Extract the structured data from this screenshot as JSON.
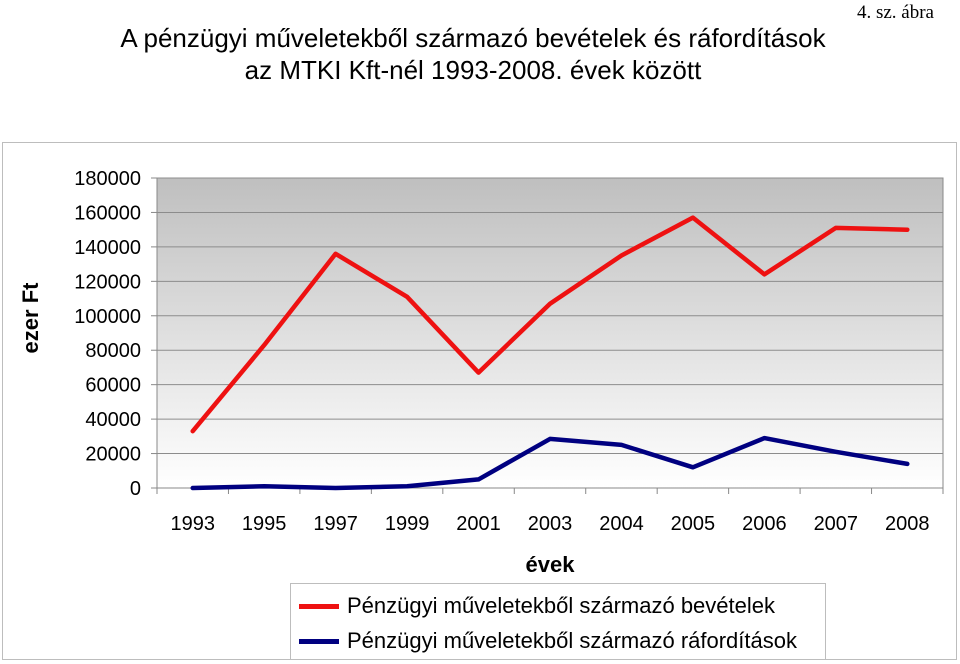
{
  "figure_note": "4. sz. ábra",
  "title_line1": "A pénzügyi műveletekből származó bevételek és ráfordítások",
  "title_line2": "az MTKI Kft-nél 1993-2008. évek között",
  "chart_data": {
    "type": "line",
    "title": "A pénzügyi műveletekből származó bevételek és ráfordítások az MTKI Kft-nél 1993-2008. évek között",
    "xlabel": "évek",
    "ylabel": "ezer Ft",
    "categories": [
      "1993",
      "1995",
      "1997",
      "1999",
      "2001",
      "2003",
      "2004",
      "2005",
      "2006",
      "2007",
      "2008"
    ],
    "yticks": [
      "0",
      "20000",
      "40000",
      "60000",
      "80000",
      "100000",
      "120000",
      "140000",
      "160000",
      "180000"
    ],
    "ylim": [
      0,
      180000
    ],
    "grid": true,
    "legend_position": "bottom",
    "series": [
      {
        "name": "Pénzügyi műveletekből származó bevételek",
        "color": "#ee1111",
        "values": [
          33000,
          83000,
          136000,
          111000,
          67000,
          107000,
          135000,
          157000,
          124000,
          151000,
          150000
        ]
      },
      {
        "name": "Pénzügyi műveletekből származó ráfordítások",
        "color": "#000080",
        "values": [
          0,
          1000,
          0,
          1000,
          5000,
          28500,
          25000,
          12000,
          29000,
          21000,
          14000
        ]
      }
    ]
  }
}
